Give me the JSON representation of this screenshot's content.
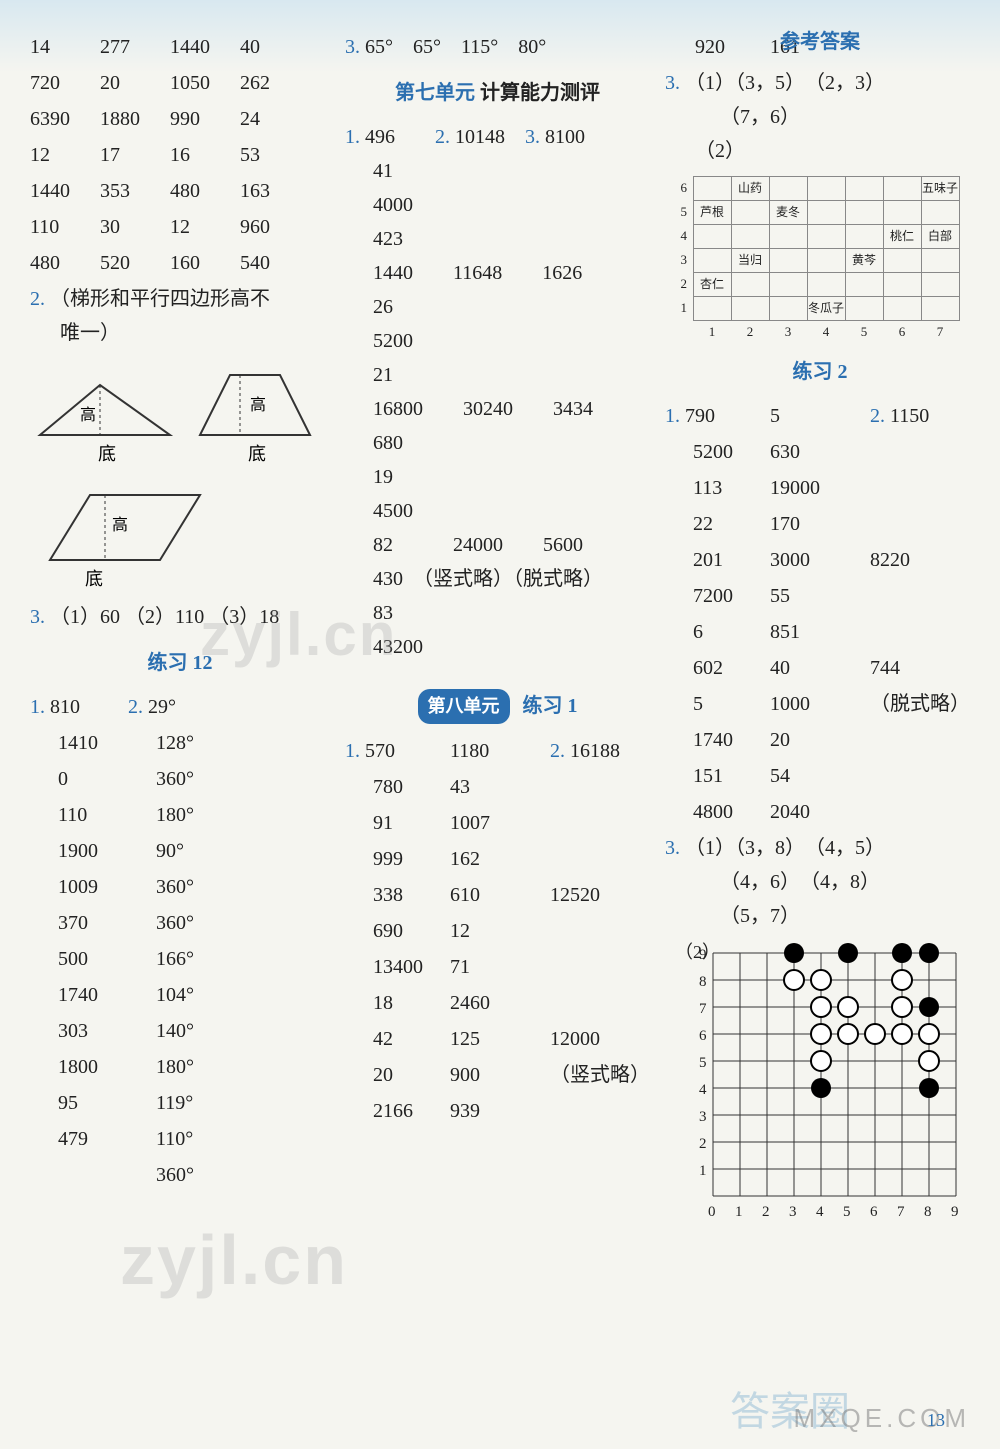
{
  "header": {
    "ref": "参考答案"
  },
  "col1": {
    "grid": [
      [
        "14",
        "277",
        "1440",
        "40"
      ],
      [
        "720",
        "20",
        "1050",
        "262"
      ],
      [
        "6390",
        "1880",
        "990",
        "24"
      ],
      [
        "12",
        "17",
        "16",
        "53"
      ],
      [
        "1440",
        "353",
        "480",
        "163"
      ],
      [
        "110",
        "30",
        "12",
        "960"
      ],
      [
        "480",
        "520",
        "160",
        "540"
      ]
    ],
    "q2": "（梯形和平行四边形高不",
    "q2b": "唯一）",
    "labels": {
      "gao": "高",
      "di": "底"
    },
    "q3": {
      "p1": "（1）60",
      "p2": "（2）110",
      "p3": "（3）18"
    },
    "lx12": "练习 12",
    "lx12_rows": [
      [
        "1. 810",
        "2. 29°"
      ],
      [
        "1410",
        "128°"
      ],
      [
        "0",
        "360°"
      ],
      [
        "110",
        "180°"
      ],
      [
        "1900",
        "90°"
      ],
      [
        "1009",
        "360°"
      ],
      [
        "370",
        "360°"
      ],
      [
        "500",
        "166°"
      ],
      [
        "1740",
        "104°"
      ],
      [
        "303",
        "140°"
      ],
      [
        "1800",
        "180°"
      ],
      [
        "95",
        "119°"
      ],
      [
        "479",
        "110°"
      ],
      [
        "",
        "360°"
      ]
    ]
  },
  "col2": {
    "q3_angles": "65°　65°　115°　80°",
    "unit7_a": "第七单元",
    "unit7_b": "计算能力测评",
    "u7": [
      "1. 496　　2. 10148　3. 8100",
      "41",
      "4000",
      "423",
      "1440　　11648　　1626",
      "26",
      "5200",
      "21",
      "16800　　30240　　3434",
      "680",
      "19",
      "4500",
      "82　　　24000　　5600",
      "430　（竖式略）（脱式略）",
      "83",
      "43200"
    ],
    "unit8_a": "第八单元",
    "unit8_b": "练习 1",
    "u8": [
      [
        "1. 570",
        "1180",
        "2. 16188"
      ],
      [
        "780",
        "43",
        ""
      ],
      [
        "91",
        "1007",
        ""
      ],
      [
        "999",
        "162",
        ""
      ],
      [
        "338",
        "610",
        "12520"
      ],
      [
        "690",
        "12",
        ""
      ],
      [
        "13400",
        "71",
        ""
      ],
      [
        "18",
        "2460",
        ""
      ],
      [
        "42",
        "125",
        "12000"
      ],
      [
        "20",
        "900",
        "（竖式略）"
      ],
      [
        "2166",
        "939",
        ""
      ]
    ]
  },
  "col3": {
    "top": [
      "920",
      "161"
    ],
    "q3_coords": {
      "l1a": "（1）（3，5）",
      "l1b": "（2，3）",
      "l2": "（7，6）",
      "l3": "（2）"
    },
    "grid1": {
      "ylabels": [
        "6",
        "5",
        "4",
        "3",
        "2",
        "1"
      ],
      "xlabels": [
        "1",
        "2",
        "3",
        "4",
        "5",
        "6",
        "7"
      ],
      "cells": {
        "6-2": "山药",
        "6-7": "五味子",
        "5-1": "芦根",
        "5-3": "麦冬",
        "4-6": "桃仁",
        "4-7": "白部",
        "3-2": "当归",
        "3-5": "黄芩",
        "2-1": "杏仁",
        "1-4": "冬瓜子"
      }
    },
    "lx2": "练习 2",
    "lx2_rows": [
      [
        "1. 790",
        "5",
        "2. 1150"
      ],
      [
        "5200",
        "630",
        ""
      ],
      [
        "113",
        "19000",
        ""
      ],
      [
        "22",
        "170",
        ""
      ],
      [
        "201",
        "3000",
        "8220"
      ],
      [
        "7200",
        "55",
        ""
      ],
      [
        "6",
        "851",
        ""
      ],
      [
        "602",
        "40",
        "744"
      ],
      [
        "5",
        "1000",
        "（脱式略）"
      ],
      [
        "1740",
        "20",
        ""
      ],
      [
        "151",
        "54",
        ""
      ],
      [
        "4800",
        "2040",
        ""
      ]
    ],
    "q3b": {
      "l1a": "（1）（3，8）",
      "l1b": "（4，5）",
      "l2a": "（4，6）",
      "l2b": "（4，8）",
      "l3a": "（5，7）"
    },
    "go": {
      "size": 9,
      "ylabels": [
        "9",
        "8",
        "7",
        "6",
        "5",
        "4",
        "3",
        "2",
        "1"
      ],
      "xlabels": [
        "0",
        "1",
        "2",
        "3",
        "4",
        "5",
        "6",
        "7",
        "8",
        "9"
      ],
      "label2": "（2）",
      "black": [
        [
          3,
          9
        ],
        [
          5,
          9
        ],
        [
          7,
          9
        ],
        [
          8,
          9
        ],
        [
          8,
          7
        ],
        [
          4,
          4
        ],
        [
          8,
          4
        ]
      ],
      "white": [
        [
          3,
          8
        ],
        [
          4,
          8
        ],
        [
          7,
          8
        ],
        [
          4,
          7
        ],
        [
          5,
          7
        ],
        [
          7,
          7
        ],
        [
          4,
          6
        ],
        [
          5,
          6
        ],
        [
          6,
          6
        ],
        [
          7,
          6
        ],
        [
          8,
          6
        ],
        [
          4,
          5
        ],
        [
          8,
          5
        ]
      ]
    }
  },
  "watermarks": {
    "w1": "zyjl.cn",
    "w2": "zyjl.cn",
    "answer": "答案圈",
    "mxqe": "MXQE.COM",
    "pagenum": "13"
  }
}
